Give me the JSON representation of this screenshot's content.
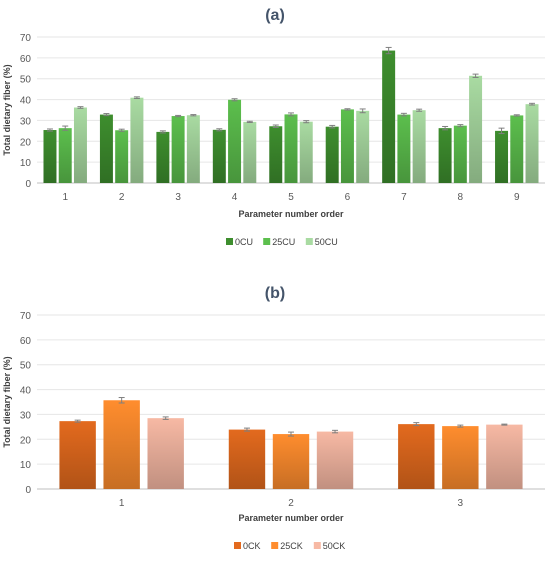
{
  "chart_data": [
    {
      "panel_label": "(a)",
      "type": "bar",
      "ylabel": "Total dietary fiber (%)",
      "xlabel": "Parameter number order",
      "ylim": [
        0,
        70
      ],
      "yticks": [
        0,
        10,
        20,
        30,
        40,
        50,
        60,
        70
      ],
      "grid": true,
      "legend_position": "bottom",
      "categories": [
        "1",
        "2",
        "3",
        "4",
        "5",
        "6",
        "7",
        "8",
        "9"
      ],
      "series": [
        {
          "name": "0CU",
          "color": "#3e8e2e",
          "values": [
            25.4,
            32.8,
            24.5,
            25.5,
            27.2,
            27.0,
            63.5,
            26.3,
            25.0
          ],
          "errors": [
            0.5,
            0.5,
            0.5,
            0.5,
            0.6,
            0.6,
            1.5,
            0.8,
            1.3
          ]
        },
        {
          "name": "25CU",
          "color": "#5cbf4d",
          "values": [
            26.3,
            25.3,
            32.1,
            39.9,
            32.9,
            35.3,
            32.8,
            27.5,
            32.4
          ],
          "errors": [
            1.0,
            0.5,
            0.3,
            0.5,
            0.7,
            0.3,
            0.6,
            0.5,
            0.3
          ]
        },
        {
          "name": "50CU",
          "color": "#a9dba2",
          "values": [
            36.2,
            40.9,
            32.5,
            29.3,
            29.4,
            34.6,
            34.9,
            51.4,
            37.8
          ],
          "errors": [
            0.4,
            0.4,
            0.3,
            0.3,
            0.5,
            0.9,
            0.5,
            0.8,
            0.4
          ]
        }
      ]
    },
    {
      "panel_label": "(b)",
      "type": "bar",
      "ylabel": "Total dietary fiber (%)",
      "xlabel": "Parameter number order",
      "ylim": [
        0,
        70
      ],
      "yticks": [
        0,
        10,
        20,
        30,
        40,
        50,
        60,
        70
      ],
      "grid": true,
      "legend_position": "bottom",
      "categories": [
        "1",
        "2",
        "3"
      ],
      "series": [
        {
          "name": "0CK",
          "color": "#e36a1e",
          "values": [
            27.3,
            23.9,
            26.1
          ],
          "errors": [
            0.4,
            0.6,
            0.6
          ]
        },
        {
          "name": "25CK",
          "color": "#ff8d2e",
          "values": [
            35.7,
            22.1,
            25.3
          ],
          "errors": [
            1.1,
            0.8,
            0.4
          ]
        },
        {
          "name": "50CK",
          "color": "#f7b9a4",
          "values": [
            28.5,
            23.1,
            25.9
          ],
          "errors": [
            0.5,
            0.5,
            0.2
          ]
        }
      ]
    }
  ]
}
